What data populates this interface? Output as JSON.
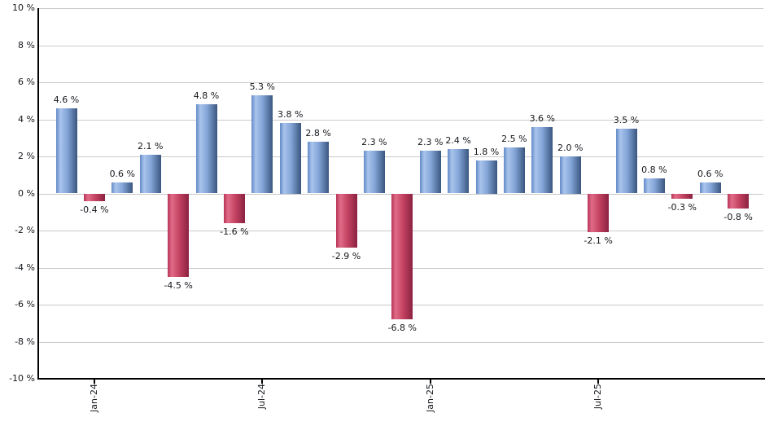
{
  "chart_data": {
    "type": "bar",
    "title": "",
    "xlabel": "",
    "ylabel": "",
    "ylim": [
      -10,
      10
    ],
    "y_tick_step": 2,
    "grid": true,
    "legend": "none",
    "y_tick_labels": [
      "10 %",
      "8 %",
      "6 %",
      "4 %",
      "2 %",
      "0 %",
      "-2 %",
      "-4 %",
      "-6 %",
      "-8 %",
      "-10 %"
    ],
    "values": [
      4.6,
      -0.4,
      0.6,
      2.1,
      -4.5,
      4.8,
      -1.6,
      5.3,
      3.8,
      2.8,
      -2.9,
      2.3,
      -6.8,
      2.3,
      2.4,
      1.8,
      2.5,
      3.6,
      2.0,
      -2.1,
      3.5,
      0.8,
      -0.3,
      0.6,
      -0.8
    ],
    "bar_labels": [
      "4.6 %",
      "-0.4 %",
      "0.6 %",
      "2.1 %",
      "-4.5 %",
      "4.8 %",
      "-1.6 %",
      "5.3 %",
      "3.8 %",
      "2.8 %",
      "-2.9 %",
      "2.3 %",
      "-6.8 %",
      "2.3 %",
      "2.4 %",
      "1.8 %",
      "2.5 %",
      "3.6 %",
      "2.0 %",
      "-2.1 %",
      "3.5 %",
      "0.8 %",
      "-0.3 %",
      "0.6 %",
      "-0.8 %"
    ],
    "x_ticks": [
      {
        "label": "Jan-24",
        "bar_index": 1
      },
      {
        "label": "Jul-24",
        "bar_index": 7
      },
      {
        "label": "Jan-25",
        "bar_index": 13
      },
      {
        "label": "Jul-25",
        "bar_index": 19
      }
    ],
    "colors": {
      "positive_bar_gradient": [
        "#638ac6",
        "#a9c4ec",
        "#84a5d8",
        "#3a567f"
      ],
      "negative_bar_gradient": [
        "#b83458",
        "#e06c88",
        "#c64564",
        "#8c2140"
      ],
      "gridline": "#c9c9c9",
      "axis": "#000000",
      "label_text": "#14171c"
    }
  }
}
